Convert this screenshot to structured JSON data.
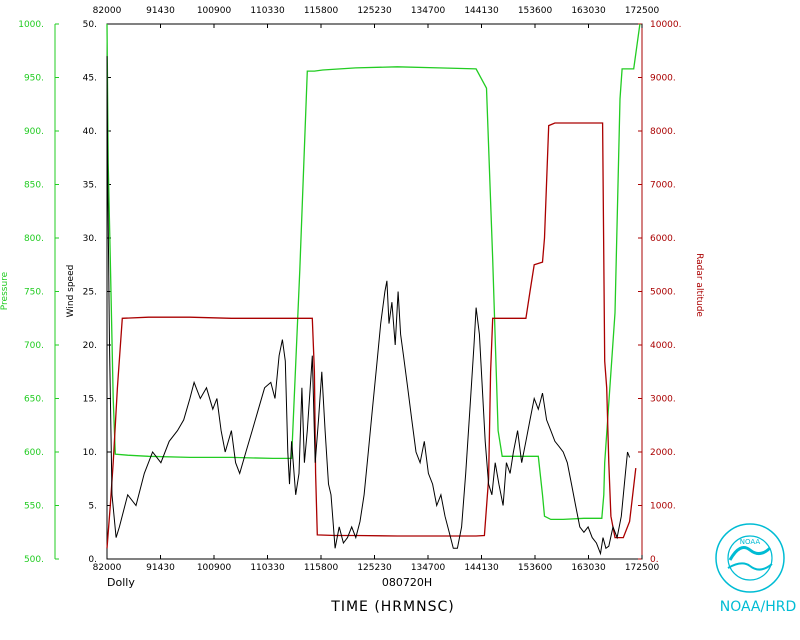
{
  "colors": {
    "pressure": "#22cc22",
    "wind": "#000000",
    "altitude": "#aa0000",
    "frame": "#000000",
    "logo": "#00bcd4"
  },
  "chart_data": {
    "type": "line",
    "storm_name": "Dolly",
    "date_label": "080720H",
    "xlabel": "TIME (HRMNSC)",
    "credit": "NOAA/HRD",
    "x_ticks": [
      "82000",
      "91430",
      "100900",
      "110330",
      "115800",
      "125230",
      "134700",
      "144130",
      "153600",
      "163030",
      "172500"
    ],
    "axes": {
      "pressure": {
        "label": "Pressure",
        "ylim": [
          500,
          1000
        ],
        "ticks": [
          "500.",
          "550.",
          "600.",
          "650.",
          "700.",
          "750.",
          "800.",
          "850.",
          "900.",
          "950.",
          "1000."
        ]
      },
      "wind": {
        "label": "Wind speed",
        "ylim": [
          0,
          50
        ],
        "ticks": [
          "0.",
          "5.",
          "10.",
          "15.",
          "20.",
          "25.",
          "30.",
          "35.",
          "40.",
          "45.",
          "50."
        ]
      },
      "altitude": {
        "label": "Radar altitude",
        "ylim": [
          0,
          10000
        ],
        "ticks": [
          "0.",
          "1000.",
          "2000.",
          "3000.",
          "4000.",
          "5000.",
          "6000.",
          "7000.",
          "8000.",
          "9000.",
          "10000."
        ]
      }
    },
    "series": [
      {
        "name": "Pressure",
        "axis": "pressure",
        "points": [
          [
            0,
            1000
          ],
          [
            0.3,
            870
          ],
          [
            0.8,
            780
          ],
          [
            1.5,
            650
          ],
          [
            2.0,
            598
          ],
          [
            5,
            597
          ],
          [
            10,
            596
          ],
          [
            20,
            595
          ],
          [
            30,
            595
          ],
          [
            40,
            594
          ],
          [
            44.5,
            594
          ],
          [
            46.5,
            770
          ],
          [
            48.3,
            956
          ],
          [
            50,
            956
          ],
          [
            52,
            957
          ],
          [
            60,
            959
          ],
          [
            70,
            960
          ],
          [
            80,
            959
          ],
          [
            89,
            958
          ],
          [
            91.5,
            940
          ],
          [
            93,
            780
          ],
          [
            94.3,
            620
          ],
          [
            95.3,
            596
          ],
          [
            100,
            596
          ],
          [
            104,
            596
          ],
          [
            105,
            560
          ],
          [
            105.5,
            540
          ],
          [
            107,
            537
          ],
          [
            110,
            537
          ],
          [
            115,
            538
          ],
          [
            119.3,
            538
          ],
          [
            119.8,
            560
          ],
          [
            120,
            590
          ],
          [
            122.5,
            730
          ],
          [
            123.7,
            930
          ],
          [
            124.2,
            958
          ],
          [
            127,
            958
          ],
          [
            128.5,
            1000
          ]
        ]
      },
      {
        "name": "Radar altitude",
        "axis": "altitude",
        "points": [
          [
            0,
            200
          ],
          [
            0.8,
            1000
          ],
          [
            1.5,
            1800
          ],
          [
            2.5,
            3200
          ],
          [
            3.7,
            4500
          ],
          [
            10,
            4520
          ],
          [
            20,
            4520
          ],
          [
            30,
            4500
          ],
          [
            40,
            4500
          ],
          [
            49.5,
            4500
          ],
          [
            50,
            3500
          ],
          [
            50.3,
            1600
          ],
          [
            50.7,
            450
          ],
          [
            55,
            440
          ],
          [
            60,
            440
          ],
          [
            70,
            430
          ],
          [
            80,
            430
          ],
          [
            89,
            430
          ],
          [
            91,
            440
          ],
          [
            92,
            1500
          ],
          [
            92.5,
            3500
          ],
          [
            93,
            4500
          ],
          [
            101,
            4500
          ],
          [
            102,
            5000
          ],
          [
            103,
            5500
          ],
          [
            105,
            5550
          ],
          [
            105.5,
            6000
          ],
          [
            106.5,
            8100
          ],
          [
            108,
            8150
          ],
          [
            112,
            8150
          ],
          [
            115,
            8150
          ],
          [
            119.5,
            8150
          ],
          [
            120,
            3700
          ],
          [
            120.5,
            3200
          ],
          [
            121,
            1800
          ],
          [
            121.5,
            800
          ],
          [
            122.5,
            400
          ],
          [
            124.5,
            400
          ],
          [
            126,
            700
          ],
          [
            127.5,
            1700
          ]
        ]
      },
      {
        "name": "Wind speed",
        "axis": "wind",
        "points": [
          [
            0,
            47
          ],
          [
            0.2,
            35
          ],
          [
            0.6,
            20
          ],
          [
            1.2,
            6
          ],
          [
            2.2,
            2
          ],
          [
            3,
            3
          ],
          [
            5,
            6
          ],
          [
            7,
            5
          ],
          [
            9,
            8
          ],
          [
            11,
            10
          ],
          [
            13,
            9
          ],
          [
            15,
            11
          ],
          [
            17,
            12
          ],
          [
            18.5,
            13
          ],
          [
            20,
            15
          ],
          [
            21,
            16.5
          ],
          [
            22.5,
            15
          ],
          [
            24,
            16
          ],
          [
            25.5,
            14
          ],
          [
            26.5,
            15
          ],
          [
            27.5,
            12
          ],
          [
            28.5,
            10
          ],
          [
            30,
            12
          ],
          [
            31,
            9
          ],
          [
            32,
            8
          ],
          [
            33.5,
            10
          ],
          [
            35,
            12
          ],
          [
            36.5,
            14
          ],
          [
            38,
            16
          ],
          [
            39.5,
            16.5
          ],
          [
            40.5,
            15
          ],
          [
            41.5,
            19
          ],
          [
            42.3,
            20.5
          ],
          [
            43,
            18.5
          ],
          [
            43.6,
            10
          ],
          [
            44,
            7
          ],
          [
            44.5,
            11
          ],
          [
            45.5,
            6
          ],
          [
            46.3,
            8
          ],
          [
            47,
            16
          ],
          [
            47.6,
            9
          ],
          [
            48.3,
            12
          ],
          [
            49,
            16
          ],
          [
            49.5,
            19
          ],
          [
            50.2,
            9
          ],
          [
            51,
            13
          ],
          [
            51.8,
            17.5
          ],
          [
            52.6,
            12
          ],
          [
            53.4,
            7
          ],
          [
            54,
            6
          ],
          [
            55,
            1
          ],
          [
            56,
            3
          ],
          [
            57,
            1.5
          ],
          [
            58,
            2
          ],
          [
            59,
            3
          ],
          [
            60,
            2
          ],
          [
            61,
            3.5
          ],
          [
            62,
            6
          ],
          [
            63,
            10
          ],
          [
            64,
            14
          ],
          [
            65,
            18
          ],
          [
            66,
            22
          ],
          [
            67,
            25
          ],
          [
            67.5,
            26
          ],
          [
            68,
            22
          ],
          [
            68.7,
            24
          ],
          [
            69.5,
            20
          ],
          [
            70.2,
            25
          ],
          [
            70.8,
            21
          ],
          [
            71.5,
            19
          ],
          [
            72.5,
            16
          ],
          [
            73.5,
            13
          ],
          [
            74.5,
            10
          ],
          [
            75.5,
            9
          ],
          [
            76.5,
            11
          ],
          [
            77.5,
            8
          ],
          [
            78.5,
            7
          ],
          [
            79.5,
            5
          ],
          [
            80.5,
            6
          ],
          [
            81.5,
            4
          ],
          [
            82.5,
            2.5
          ],
          [
            83.5,
            1
          ],
          [
            84.5,
            1
          ],
          [
            85.5,
            3
          ],
          [
            86.5,
            8
          ],
          [
            87.5,
            14
          ],
          [
            88.5,
            20
          ],
          [
            89,
            23.5
          ],
          [
            89.8,
            21
          ],
          [
            90.5,
            16
          ],
          [
            91.2,
            11
          ],
          [
            92,
            7
          ],
          [
            92.8,
            6
          ],
          [
            93.6,
            9
          ],
          [
            94.5,
            7
          ],
          [
            95.5,
            5
          ],
          [
            96.3,
            9
          ],
          [
            97.2,
            8
          ],
          [
            98,
            10
          ],
          [
            99,
            12
          ],
          [
            100,
            9
          ],
          [
            101,
            11
          ],
          [
            102,
            13
          ],
          [
            103,
            15
          ],
          [
            104,
            14
          ],
          [
            105,
            15.5
          ],
          [
            106,
            13
          ],
          [
            107,
            12
          ],
          [
            108,
            11
          ],
          [
            109,
            10.5
          ],
          [
            110,
            10
          ],
          [
            111,
            9
          ],
          [
            112,
            7
          ],
          [
            113,
            5
          ],
          [
            114,
            3
          ],
          [
            115,
            2.5
          ],
          [
            116,
            3
          ],
          [
            117,
            2
          ],
          [
            118,
            1.5
          ],
          [
            119,
            0.5
          ],
          [
            119.6,
            2
          ],
          [
            120.3,
            1
          ],
          [
            121,
            1.2
          ],
          [
            122,
            3
          ],
          [
            123,
            2
          ],
          [
            124,
            4
          ],
          [
            125,
            8
          ],
          [
            125.5,
            10
          ],
          [
            126,
            9.5
          ]
        ]
      }
    ]
  }
}
